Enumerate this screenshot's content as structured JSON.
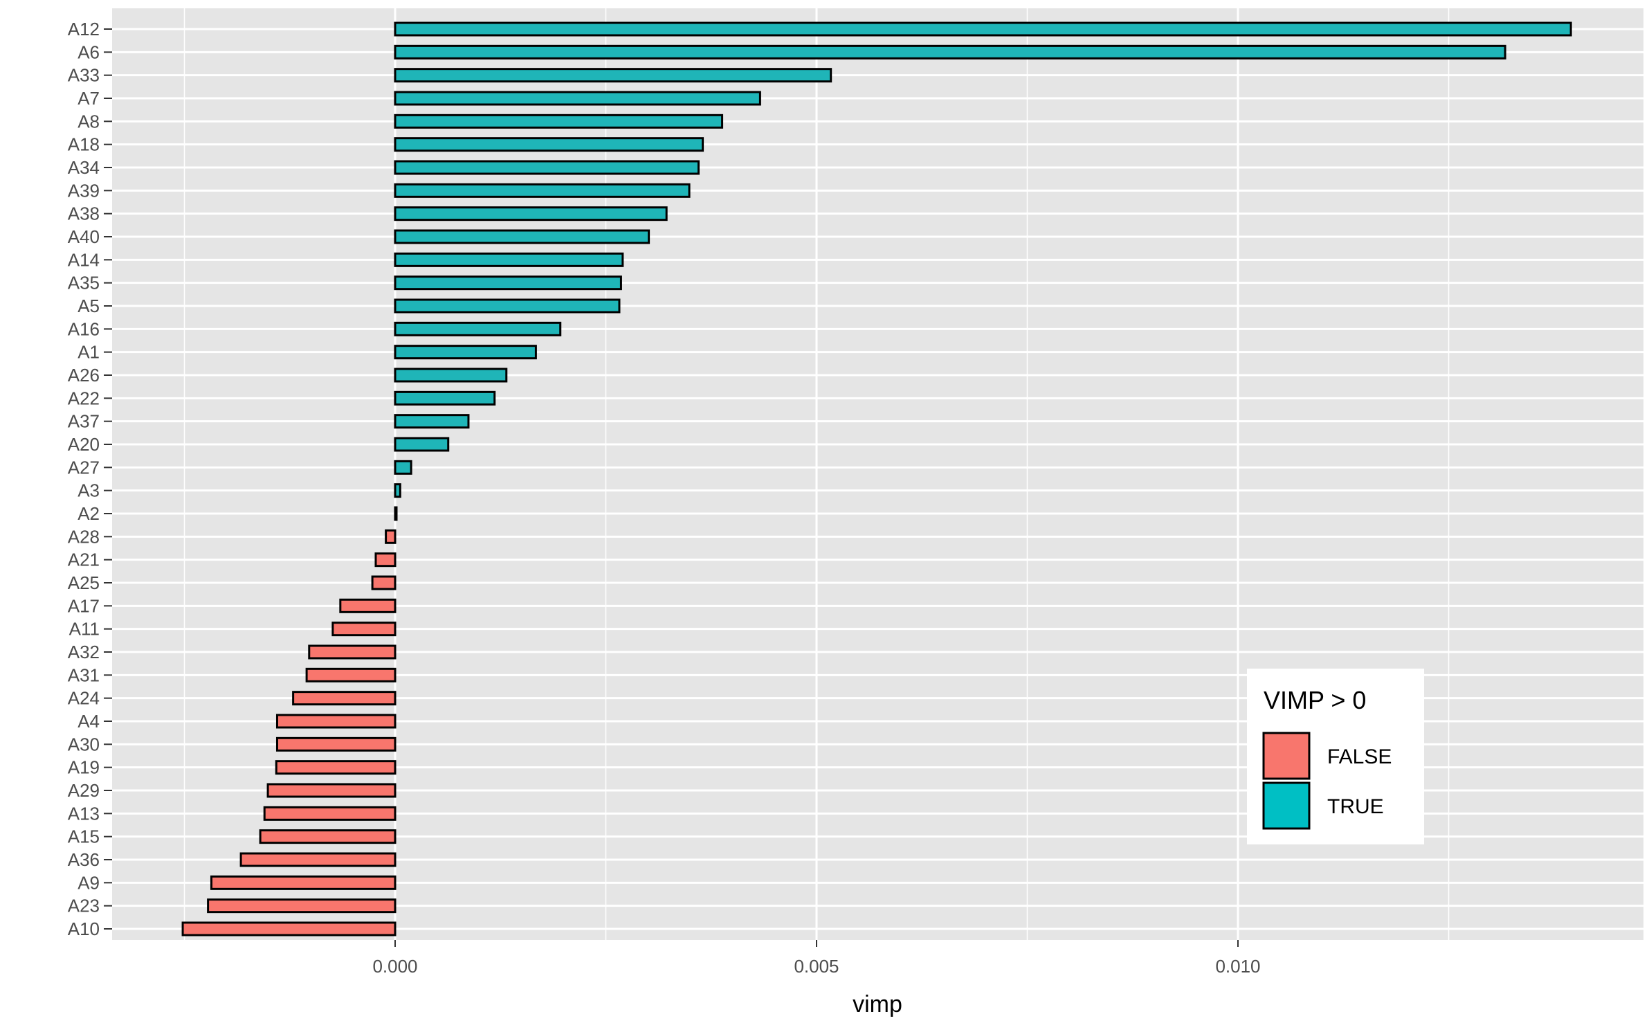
{
  "chart_data": {
    "type": "bar",
    "orientation": "horizontal",
    "xlabel": "vimp",
    "ylabel": "",
    "xlim": [
      -0.0034,
      0.0144
    ],
    "x_ticks": [
      0.0,
      0.005,
      0.01
    ],
    "x_tick_labels": [
      "0.000",
      "0.005",
      "0.010"
    ],
    "grid": true,
    "legend": {
      "title": "VIMP > 0",
      "placement": "bottom-right",
      "entries": [
        {
          "label": "FALSE",
          "color": "#F8766D"
        },
        {
          "label": "TRUE",
          "color": "#00BFC4"
        }
      ]
    },
    "colors": {
      "negative": "#F8766D",
      "positive": "#1FB5B8",
      "panel": "#E5E5E5",
      "grid": "#FFFFFF",
      "outline": "#000000"
    },
    "categories": [
      "A12",
      "A6",
      "A33",
      "A7",
      "A8",
      "A18",
      "A34",
      "A39",
      "A38",
      "A40",
      "A14",
      "A35",
      "A5",
      "A16",
      "A1",
      "A26",
      "A22",
      "A37",
      "A20",
      "A27",
      "A3",
      "A2",
      "A28",
      "A21",
      "A25",
      "A17",
      "A11",
      "A32",
      "A31",
      "A24",
      "A4",
      "A30",
      "A19",
      "A29",
      "A13",
      "A15",
      "A36",
      "A9",
      "A23",
      "A10"
    ],
    "values": [
      0.01395,
      0.01317,
      0.00517,
      0.00433,
      0.00388,
      0.00365,
      0.0036,
      0.00349,
      0.00322,
      0.00301,
      0.0027,
      0.00268,
      0.00266,
      0.00196,
      0.00167,
      0.00132,
      0.00118,
      0.00087,
      0.00063,
      0.00019,
      6e-05,
      1e-05,
      -0.00011,
      -0.00023,
      -0.00027,
      -0.00065,
      -0.00074,
      -0.00102,
      -0.00105,
      -0.00121,
      -0.0014,
      -0.0014,
      -0.00141,
      -0.00151,
      -0.00155,
      -0.0016,
      -0.00183,
      -0.00218,
      -0.00222,
      -0.00252
    ]
  }
}
